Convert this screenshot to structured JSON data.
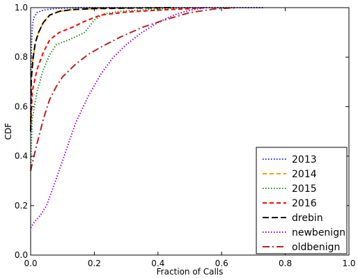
{
  "chart_data": {
    "type": "line",
    "title": "",
    "xlabel": "Fraction of Calls",
    "ylabel": "CDF",
    "xlim": [
      0,
      1
    ],
    "ylim": [
      0,
      1
    ],
    "x_ticks": [
      "0.0",
      "0.2",
      "0.4",
      "0.6",
      "0.8",
      "1.0"
    ],
    "y_ticks": [
      "0.0",
      "0.2",
      "0.4",
      "0.6",
      "0.8",
      "1.0"
    ],
    "grid": false,
    "legend_position": "bottom-right",
    "series": [
      {
        "name": "2013",
        "color": "#1f1fff",
        "dash": "dotted",
        "points": [
          [
            0,
            0.5
          ],
          [
            0.001,
            0.75
          ],
          [
            0.003,
            0.86
          ],
          [
            0.006,
            0.93
          ],
          [
            0.01,
            0.96
          ],
          [
            0.02,
            0.98
          ],
          [
            0.04,
            0.99
          ],
          [
            0.08,
            0.997
          ],
          [
            0.15,
            1.0
          ],
          [
            0.73,
            1.0
          ]
        ]
      },
      {
        "name": "2014",
        "color": "#f5a000",
        "dash": "dashed",
        "points": [
          [
            0,
            0.53
          ],
          [
            0.002,
            0.72
          ],
          [
            0.008,
            0.8
          ],
          [
            0.015,
            0.86
          ],
          [
            0.025,
            0.9
          ],
          [
            0.04,
            0.94
          ],
          [
            0.06,
            0.97
          ],
          [
            0.09,
            0.985
          ],
          [
            0.13,
            0.992
          ],
          [
            0.2,
            0.996
          ],
          [
            0.3,
            0.998
          ],
          [
            0.4,
            1.0
          ]
        ]
      },
      {
        "name": "2015",
        "color": "#1a8c1a",
        "dash": "dotted",
        "points": [
          [
            0,
            0.35
          ],
          [
            0.005,
            0.55
          ],
          [
            0.02,
            0.66
          ],
          [
            0.04,
            0.75
          ],
          [
            0.06,
            0.81
          ],
          [
            0.08,
            0.85
          ],
          [
            0.12,
            0.87
          ],
          [
            0.17,
            0.9
          ],
          [
            0.2,
            0.95
          ],
          [
            0.23,
            0.975
          ],
          [
            0.28,
            0.985
          ],
          [
            0.38,
            0.993
          ],
          [
            0.5,
            1.0
          ]
        ]
      },
      {
        "name": "2016",
        "color": "#ff0000",
        "dash": "dashed",
        "points": [
          [
            0,
            0.5
          ],
          [
            0.005,
            0.66
          ],
          [
            0.02,
            0.75
          ],
          [
            0.04,
            0.82
          ],
          [
            0.06,
            0.87
          ],
          [
            0.09,
            0.9
          ],
          [
            0.13,
            0.92
          ],
          [
            0.17,
            0.945
          ],
          [
            0.22,
            0.97
          ],
          [
            0.3,
            0.982
          ],
          [
            0.4,
            0.99
          ],
          [
            0.5,
            0.996
          ],
          [
            0.55,
            1.0
          ]
        ]
      },
      {
        "name": "drebin",
        "color": "#000000",
        "dash": "longdash",
        "points": [
          [
            0,
            0.5
          ],
          [
            0.002,
            0.71
          ],
          [
            0.008,
            0.8
          ],
          [
            0.015,
            0.86
          ],
          [
            0.025,
            0.9
          ],
          [
            0.04,
            0.94
          ],
          [
            0.06,
            0.97
          ],
          [
            0.09,
            0.985
          ],
          [
            0.13,
            0.992
          ],
          [
            0.2,
            0.996
          ],
          [
            0.3,
            0.998
          ],
          [
            0.45,
            1.0
          ]
        ]
      },
      {
        "name": "newbenign",
        "color": "#9400d3",
        "dash": "dotted",
        "points": [
          [
            0,
            0.11
          ],
          [
            0.01,
            0.13
          ],
          [
            0.03,
            0.16
          ],
          [
            0.05,
            0.2
          ],
          [
            0.07,
            0.27
          ],
          [
            0.1,
            0.38
          ],
          [
            0.14,
            0.53
          ],
          [
            0.18,
            0.64
          ],
          [
            0.22,
            0.73
          ],
          [
            0.26,
            0.8
          ],
          [
            0.3,
            0.85
          ],
          [
            0.35,
            0.9
          ],
          [
            0.4,
            0.94
          ],
          [
            0.45,
            0.97
          ],
          [
            0.5,
            0.99
          ],
          [
            0.55,
            1.0
          ]
        ]
      },
      {
        "name": "oldbenign",
        "color": "#b22222",
        "dash": "dashdot",
        "points": [
          [
            0,
            0.34
          ],
          [
            0.005,
            0.37
          ],
          [
            0.02,
            0.45
          ],
          [
            0.04,
            0.55
          ],
          [
            0.06,
            0.63
          ],
          [
            0.08,
            0.68
          ],
          [
            0.1,
            0.72
          ],
          [
            0.14,
            0.77
          ],
          [
            0.18,
            0.81
          ],
          [
            0.22,
            0.84
          ],
          [
            0.28,
            0.88
          ],
          [
            0.35,
            0.92
          ],
          [
            0.42,
            0.95
          ],
          [
            0.5,
            0.98
          ],
          [
            0.58,
            0.995
          ],
          [
            0.65,
            1.0
          ]
        ]
      }
    ]
  }
}
